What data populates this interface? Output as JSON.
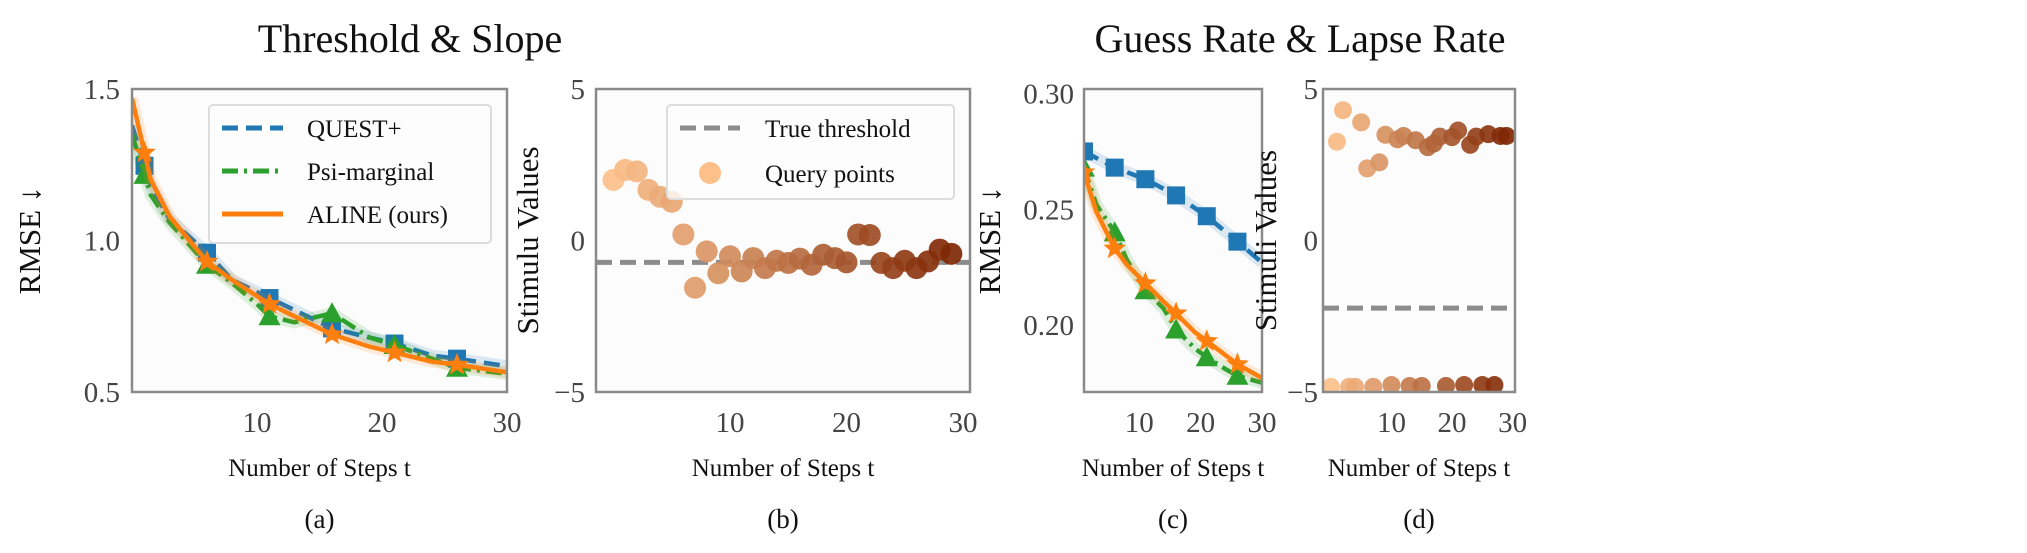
{
  "group_titles": [
    "Threshold & Slope",
    "Guess Rate & Lapse Rate"
  ],
  "chart_data": [
    {
      "type": "line",
      "caption": "(a)",
      "xlabel": "Number of Steps t",
      "ylabel": "RMSE ↓",
      "xlim": [
        0,
        30
      ],
      "ylim": [
        0.5,
        1.5
      ],
      "xticks": [
        10,
        20,
        30
      ],
      "yticks": [
        0.5,
        1.0,
        1.5
      ],
      "ytick_labels": [
        "0.5",
        "1.0",
        "1.5"
      ],
      "grid": false,
      "legend": "top-right",
      "series": [
        {
          "name": "QUEST+",
          "color": "#1f77b4",
          "style": "dashed",
          "marker": "square",
          "x": [
            0,
            1.5,
            3,
            6,
            8,
            11,
            13,
            16,
            19,
            21,
            24,
            26,
            30
          ],
          "y": [
            1.38,
            1.18,
            1.07,
            0.96,
            0.87,
            0.81,
            0.77,
            0.71,
            0.68,
            0.66,
            0.62,
            0.61,
            0.585
          ]
        },
        {
          "name": "Psi-marginal",
          "color": "#2ca02c",
          "style": "dashdot",
          "marker": "triangle",
          "x": [
            0,
            1.5,
            3,
            6,
            8,
            10,
            11,
            13,
            16,
            19,
            21,
            24,
            26,
            30
          ],
          "y": [
            1.35,
            1.15,
            1.06,
            0.92,
            0.86,
            0.79,
            0.75,
            0.73,
            0.76,
            0.68,
            0.655,
            0.61,
            0.58,
            0.56
          ]
        },
        {
          "name": "ALINE (ours)",
          "color": "#ff7f0e",
          "style": "solid",
          "marker": "star",
          "x": [
            0,
            1.5,
            3,
            6,
            8,
            11,
            13,
            16,
            19,
            21,
            24,
            26,
            30
          ],
          "y": [
            1.47,
            1.2,
            1.08,
            0.93,
            0.87,
            0.79,
            0.75,
            0.69,
            0.65,
            0.63,
            0.6,
            0.59,
            0.565
          ]
        }
      ],
      "marker_x": [
        1,
        6,
        11,
        16,
        21,
        26
      ]
    },
    {
      "type": "scatter",
      "caption": "(b)",
      "xlabel": "Number of Steps t",
      "ylabel": "Stimulu Values",
      "xlim": [
        -1.5,
        30.6
      ],
      "ylim": [
        -5,
        5
      ],
      "xticks": [
        10,
        20,
        30
      ],
      "yticks": [
        -5,
        0,
        5
      ],
      "ytick_labels": [
        "−5",
        "0",
        "5"
      ],
      "grid": false,
      "legend": "top-right",
      "reference_line": {
        "name": "True threshold",
        "y": -0.72,
        "color": "#8c8c8c",
        "style": "dashed"
      },
      "points_name": "Query points",
      "colormap": [
        "#fdc08a",
        "#7f2704"
      ],
      "x": [
        0,
        1,
        2,
        3,
        4,
        5,
        6,
        7,
        8,
        9,
        10,
        11,
        12,
        13,
        14,
        15,
        16,
        17,
        18,
        19,
        20,
        21,
        22,
        23,
        24,
        25,
        26,
        27,
        28,
        29
      ],
      "y": [
        2.0,
        2.33,
        2.28,
        1.67,
        1.44,
        1.28,
        0.2,
        -1.56,
        -0.36,
        -1.08,
        -0.52,
        -1.02,
        -0.58,
        -0.91,
        -0.67,
        -0.74,
        -0.6,
        -0.8,
        -0.47,
        -0.58,
        -0.72,
        0.2,
        0.18,
        -0.74,
        -0.91,
        -0.67,
        -0.91,
        -0.69,
        -0.3,
        -0.44
      ]
    },
    {
      "type": "line",
      "caption": "(c)",
      "xlabel": "Number of Steps t",
      "ylabel": "RMSE ↓",
      "xlim": [
        1,
        30
      ],
      "ylim": [
        0.171,
        0.302
      ],
      "xticks": [
        10,
        20,
        30
      ],
      "yticks": [
        0.2,
        0.25,
        0.3
      ],
      "ytick_labels": [
        "0.20",
        "0.25",
        "0.30"
      ],
      "grid": false,
      "series": [
        {
          "name": "QUEST+",
          "color": "#1f77b4",
          "style": "dashed",
          "marker": "square",
          "x": [
            1,
            6,
            11,
            16,
            21,
            26,
            30
          ],
          "y": [
            0.275,
            0.268,
            0.263,
            0.256,
            0.247,
            0.236,
            0.227
          ]
        },
        {
          "name": "Psi-marginal",
          "color": "#2ca02c",
          "style": "dashdot",
          "marker": "triangle",
          "x": [
            1,
            3,
            6,
            8,
            11,
            14,
            16,
            19,
            21,
            24,
            26,
            30
          ],
          "y": [
            0.268,
            0.252,
            0.24,
            0.228,
            0.215,
            0.207,
            0.198,
            0.19,
            0.186,
            0.181,
            0.178,
            0.175
          ]
        },
        {
          "name": "ALINE (ours)",
          "color": "#ff7f0e",
          "style": "solid",
          "marker": "star",
          "x": [
            1,
            3,
            6,
            8,
            11,
            14,
            16,
            19,
            21,
            24,
            26,
            30
          ],
          "y": [
            0.266,
            0.249,
            0.233,
            0.226,
            0.218,
            0.21,
            0.205,
            0.197,
            0.193,
            0.187,
            0.183,
            0.177
          ]
        }
      ],
      "marker_x": [
        1,
        6,
        11,
        16,
        21,
        26
      ]
    },
    {
      "type": "scatter",
      "caption": "(d)",
      "xlabel": "Number of Steps t",
      "ylabel": "Stimuli Values",
      "xlim": [
        -1.3,
        30.4
      ],
      "ylim": [
        -5,
        5
      ],
      "xticks": [
        10,
        20,
        30
      ],
      "yticks": [
        -5,
        0,
        5
      ],
      "ytick_labels": [
        "−5",
        "0",
        "5"
      ],
      "grid": false,
      "reference_line": {
        "y": -2.23,
        "color": "#8c8c8c",
        "style": "dashed"
      },
      "colormap": [
        "#fdc08a",
        "#7f2704"
      ],
      "x": [
        0,
        1,
        2,
        3,
        4,
        5,
        6,
        7,
        8,
        9,
        10,
        11,
        12,
        13,
        14,
        15,
        16,
        17,
        18,
        19,
        20,
        21,
        22,
        23,
        24,
        25,
        26,
        27,
        28,
        29
      ],
      "y": [
        -4.83,
        3.26,
        4.3,
        -4.83,
        -4.83,
        3.9,
        2.38,
        -4.83,
        2.58,
        3.49,
        -4.77,
        3.34,
        3.45,
        -4.8,
        3.31,
        -4.8,
        3.08,
        3.2,
        3.43,
        -4.8,
        3.41,
        3.63,
        -4.77,
        3.16,
        3.43,
        -4.77,
        3.51,
        -4.77,
        3.45,
        3.45
      ]
    }
  ]
}
